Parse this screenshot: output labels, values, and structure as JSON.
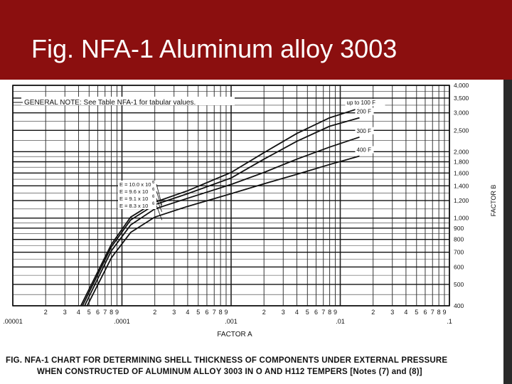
{
  "slide": {
    "title": "Fig. NFA-1 Aluminum alloy 3003",
    "header_color": "#8b0f0f"
  },
  "chart_data": {
    "type": "line",
    "title_line1": "FIG. NFA-1    CHART FOR DETERMINING SHELL THICKNESS OF COMPONENTS UNDER EXTERNAL PRESSURE",
    "title_line2": "WHEN CONSTRUCTED OF ALUMINUM ALLOY 3003 IN O AND H112 TEMPERS [Notes (7) and (8)]",
    "general_note": "GENERAL NOTE: See Table NFA-1 for tabular values.",
    "xlabel": "FACTOR A",
    "ylabel": "FACTOR B",
    "x_scale": "log",
    "y_scale": "log",
    "xlim": [
      1e-05,
      0.1
    ],
    "ylim": [
      400,
      4000
    ],
    "x_decade_labels": [
      {
        "value": 1e-05,
        "label": ".00001"
      },
      {
        "value": 0.0001,
        "label": ".0001"
      },
      {
        "value": 0.001,
        "label": ".001"
      },
      {
        "value": 0.01,
        "label": ".01"
      },
      {
        "value": 0.1,
        "label": ".1"
      }
    ],
    "x_minor_labels": [
      "2",
      "3",
      "4",
      "5",
      "6",
      "7",
      "8",
      "9"
    ],
    "y_ticks": [
      {
        "value": 4000,
        "label": "4,000"
      },
      {
        "value": 3500,
        "label": "3,500"
      },
      {
        "value": 3000,
        "label": "3,000"
      },
      {
        "value": 2500,
        "label": "2,500"
      },
      {
        "value": 2000,
        "label": "2,000"
      },
      {
        "value": 1800,
        "label": "1,800"
      },
      {
        "value": 1600,
        "label": "1,600"
      },
      {
        "value": 1400,
        "label": "1,400"
      },
      {
        "value": 1200,
        "label": "1,200"
      },
      {
        "value": 1000,
        "label": "1,000"
      },
      {
        "value": 900,
        "label": "900"
      },
      {
        "value": 800,
        "label": "800"
      },
      {
        "value": 700,
        "label": "700"
      },
      {
        "value": 600,
        "label": "600"
      },
      {
        "value": 500,
        "label": "500"
      },
      {
        "value": 400,
        "label": "400"
      }
    ],
    "e_lines": [
      {
        "label": "E = 10.0 x 10",
        "exp": "6",
        "A_at_400": 4.2e-05
      },
      {
        "label": "E = 9.6 x 10",
        "exp": "6",
        "A_at_400": 4.35e-05
      },
      {
        "label": "E = 9.1 x 10",
        "exp": "6",
        "A_at_400": 4.55e-05
      },
      {
        "label": "E = 8.3 x 10",
        "exp": "6",
        "A_at_400": 4.8e-05
      }
    ],
    "series": [
      {
        "name": "up to 100 F",
        "x": [
          4.2e-05,
          8e-05,
          0.00012,
          0.0002,
          0.0004,
          0.001,
          0.002,
          0.004,
          0.008,
          0.015
        ],
        "y": [
          400,
          760,
          1010,
          1180,
          1330,
          1610,
          1980,
          2420,
          2850,
          3150
        ]
      },
      {
        "name": "200 F",
        "x": [
          4.35e-05,
          8e-05,
          0.00012,
          0.0002,
          0.0004,
          0.001,
          0.002,
          0.004,
          0.008,
          0.015
        ],
        "y": [
          400,
          740,
          980,
          1150,
          1290,
          1520,
          1850,
          2230,
          2610,
          2850
        ]
      },
      {
        "name": "300 F",
        "x": [
          4.55e-05,
          8e-05,
          0.00012,
          0.0002,
          0.0004,
          0.001,
          0.002,
          0.004,
          0.008,
          0.015
        ],
        "y": [
          400,
          710,
          930,
          1100,
          1230,
          1420,
          1610,
          1850,
          2100,
          2330
        ]
      },
      {
        "name": "400 F",
        "x": [
          4.8e-05,
          8e-05,
          0.00012,
          0.0002,
          0.0004,
          0.001,
          0.002,
          0.004,
          0.008,
          0.015
        ],
        "y": [
          400,
          660,
          860,
          1010,
          1130,
          1290,
          1430,
          1580,
          1750,
          1910
        ]
      }
    ]
  }
}
